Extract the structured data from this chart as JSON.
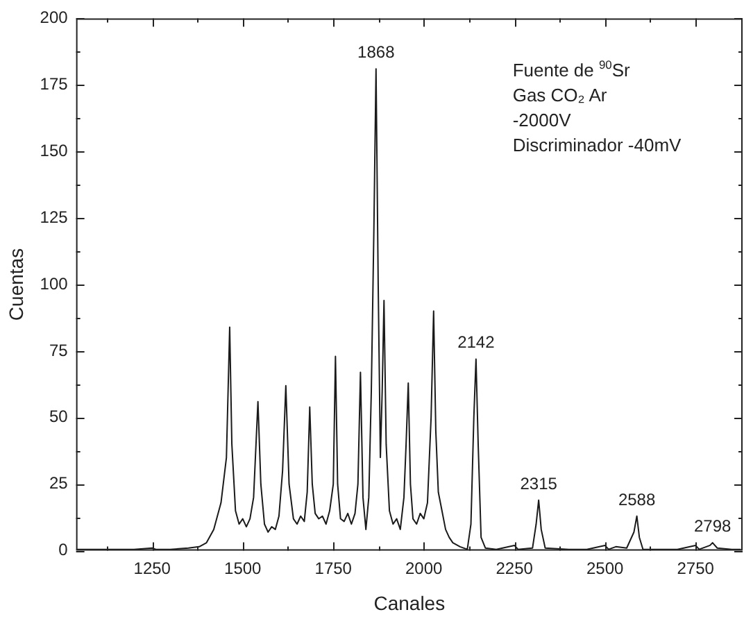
{
  "chart_data": {
    "type": "line",
    "xlabel": "Canales",
    "ylabel": "Cuentas",
    "grid": false,
    "legend": false,
    "marker": "none",
    "line_style": "solid",
    "xlim": [
      1040,
      2880
    ],
    "ylim": [
      0,
      200
    ],
    "xticks": [
      {
        "value": 1125,
        "label": null
      },
      1250,
      {
        "value": 1375,
        "label": null
      },
      1500,
      {
        "value": 1625,
        "label": null
      },
      1750,
      {
        "value": 1875,
        "label": null
      },
      2000,
      {
        "value": 2125,
        "label": null
      },
      2250,
      {
        "value": 2375,
        "label": null
      },
      2500,
      {
        "value": 2625,
        "label": null
      },
      2750
    ],
    "yticks": [
      0,
      {
        "value": 12.5,
        "label": null
      },
      25,
      {
        "value": 37.5,
        "label": null
      },
      50,
      {
        "value": 62.5,
        "label": null
      },
      75,
      {
        "value": 87.5,
        "label": null
      },
      100,
      {
        "value": 112.5,
        "label": null
      },
      125,
      {
        "value": 137.5,
        "label": null
      },
      150,
      {
        "value": 162.5,
        "label": null
      },
      175,
      {
        "value": 187.5,
        "label": null
      },
      200
    ],
    "series": [
      {
        "color": "#1a1a1a",
        "x": [
          1040,
          1100,
          1150,
          1200,
          1250,
          1260,
          1300,
          1350,
          1380,
          1400,
          1420,
          1440,
          1455,
          1464,
          1470,
          1480,
          1490,
          1500,
          1510,
          1520,
          1530,
          1542,
          1550,
          1560,
          1570,
          1580,
          1590,
          1600,
          1610,
          1619,
          1628,
          1640,
          1650,
          1660,
          1670,
          1678,
          1685,
          1692,
          1700,
          1710,
          1720,
          1730,
          1740,
          1750,
          1756,
          1762,
          1770,
          1780,
          1790,
          1800,
          1810,
          1818,
          1825,
          1832,
          1840,
          1848,
          1855,
          1862,
          1868,
          1874,
          1880,
          1885,
          1890,
          1896,
          1905,
          1915,
          1925,
          1935,
          1945,
          1951,
          1957,
          1963,
          1970,
          1980,
          1990,
          2000,
          2010,
          2020,
          2027,
          2033,
          2040,
          2050,
          2060,
          2070,
          2080,
          2100,
          2120,
          2130,
          2138,
          2144,
          2150,
          2158,
          2170,
          2200,
          2250,
          2260,
          2300,
          2310,
          2317,
          2324,
          2335,
          2400,
          2450,
          2500,
          2510,
          2530,
          2560,
          2580,
          2588,
          2595,
          2605,
          2700,
          2750,
          2760,
          2790,
          2797,
          2810,
          2850,
          2875
        ],
        "values": [
          0.5,
          0.5,
          0.5,
          0.5,
          1,
          0.5,
          0.5,
          1,
          1.5,
          3,
          8,
          18,
          35,
          84,
          40,
          15,
          10,
          12,
          9,
          12,
          20,
          56,
          25,
          10,
          7,
          9,
          8,
          13,
          30,
          62,
          25,
          12,
          10,
          13,
          11,
          22,
          54,
          25,
          14,
          12,
          13,
          10,
          15,
          25,
          73,
          25,
          12,
          11,
          14,
          10,
          14,
          25,
          67,
          20,
          8,
          20,
          60,
          120,
          181,
          100,
          35,
          60,
          94,
          40,
          15,
          10,
          12,
          8,
          20,
          40,
          63,
          25,
          12,
          10,
          14,
          12,
          18,
          50,
          90,
          45,
          22,
          15,
          8,
          5,
          3,
          1.5,
          0.5,
          10,
          50,
          72,
          40,
          5,
          1,
          0.5,
          2,
          0.5,
          1,
          10,
          19,
          8,
          1,
          0.5,
          0.5,
          2,
          0.5,
          1.5,
          1,
          7,
          13,
          5,
          0.5,
          0.5,
          2,
          0.5,
          2,
          3,
          1,
          0.5,
          0.5
        ]
      }
    ],
    "annotations": [
      {
        "text": "1868",
        "x": 1868,
        "y": 181
      },
      {
        "text": "2142",
        "x": 2144,
        "y": 72
      },
      {
        "text": "2315",
        "x": 2317,
        "y": 19
      },
      {
        "text": "2588",
        "x": 2588,
        "y": 13
      },
      {
        "text": "2798",
        "x": 2797,
        "y": 3
      },
      "Fuente de $^{90}$Sr",
      "Gas CO₂ Ar",
      "-2000V",
      "Discriminador -40mV"
    ]
  }
}
